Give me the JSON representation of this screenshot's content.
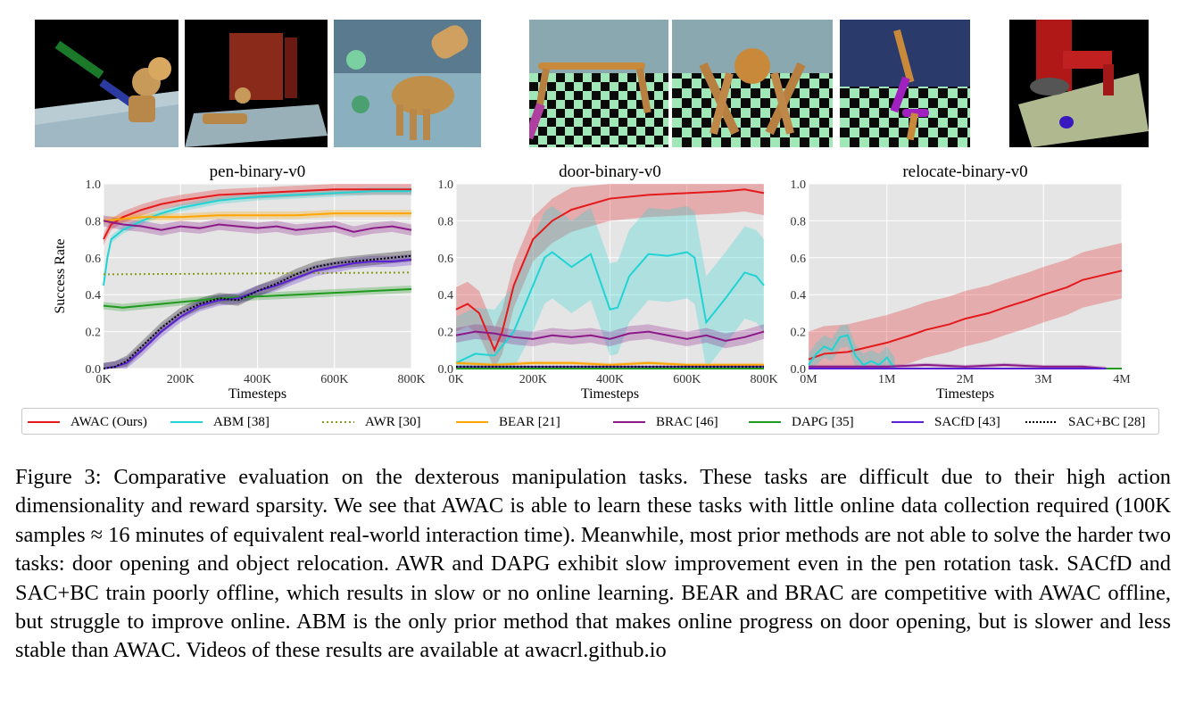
{
  "thumbnails": [
    {
      "name": "pen-scene",
      "alt": "robotic hand rotating a pen"
    },
    {
      "name": "door-scene",
      "alt": "robotic hand opening a door"
    },
    {
      "name": "relocate-scene",
      "alt": "robotic hand relocating a ball"
    },
    {
      "name": "ant-scene-1",
      "alt": "ant robot on checkerboard"
    },
    {
      "name": "ant-scene-2",
      "alt": "ant robot on checkerboard"
    },
    {
      "name": "walker-scene",
      "alt": "walker robot on checkerboard"
    },
    {
      "name": "sawyer-scene",
      "alt": "sawyer arm pushing puck"
    }
  ],
  "colors": {
    "AWAC": "#e41a1c",
    "ABM": "#21d3d3",
    "AWR": "#8a9a1a",
    "BEAR": "#ffa500",
    "BRAC": "#8b1a89",
    "DAPG": "#1f9a1f",
    "SACfD": "#5a1fd6",
    "SACBC": "#000000",
    "plot_bg": "#e5e5e5"
  },
  "chart_data": [
    {
      "type": "line",
      "title": "pen-binary-v0",
      "xlabel": "Timesteps",
      "ylabel": "Success Rate",
      "xlim": [
        0,
        800000
      ],
      "ylim": [
        0,
        1
      ],
      "xticks": [
        "0K",
        "200K",
        "400K",
        "600K",
        "800K"
      ],
      "yticks": [
        "0.0",
        "0.2",
        "0.4",
        "0.6",
        "0.8",
        "1.0"
      ],
      "grid": true,
      "series": [
        {
          "name": "AWAC (Ours)",
          "key": "AWAC",
          "x": [
            0,
            20000,
            50000,
            100000,
            150000,
            200000,
            300000,
            400000,
            500000,
            600000,
            700000,
            800000
          ],
          "y": [
            0.7,
            0.78,
            0.82,
            0.86,
            0.89,
            0.91,
            0.94,
            0.95,
            0.96,
            0.97,
            0.97,
            0.97
          ],
          "band": 0.03
        },
        {
          "name": "ABM [38]",
          "key": "ABM",
          "x": [
            0,
            10000,
            20000,
            50000,
            100000,
            150000,
            200000,
            300000,
            400000,
            500000,
            600000,
            700000,
            800000
          ],
          "y": [
            0.45,
            0.6,
            0.7,
            0.75,
            0.8,
            0.84,
            0.87,
            0.91,
            0.93,
            0.94,
            0.95,
            0.96,
            0.96
          ],
          "band": 0.02
        },
        {
          "name": "AWR [30]",
          "key": "AWR",
          "x": [
            0,
            800000
          ],
          "y": [
            0.51,
            0.52
          ],
          "dash": "2,3",
          "band": 0.0
        },
        {
          "name": "BEAR [21]",
          "key": "BEAR",
          "x": [
            0,
            50000,
            100000,
            200000,
            300000,
            400000,
            500000,
            600000,
            700000,
            800000
          ],
          "y": [
            0.8,
            0.81,
            0.82,
            0.82,
            0.83,
            0.83,
            0.83,
            0.84,
            0.84,
            0.84
          ],
          "band": 0.02
        },
        {
          "name": "BRAC [46]",
          "key": "BRAC",
          "x": [
            0,
            50000,
            100000,
            150000,
            200000,
            250000,
            300000,
            350000,
            400000,
            450000,
            500000,
            550000,
            600000,
            650000,
            700000,
            750000,
            800000
          ],
          "y": [
            0.8,
            0.78,
            0.77,
            0.75,
            0.77,
            0.76,
            0.78,
            0.77,
            0.76,
            0.77,
            0.75,
            0.76,
            0.77,
            0.74,
            0.76,
            0.77,
            0.75
          ],
          "band": 0.03
        },
        {
          "name": "DAPG [35]",
          "key": "DAPG",
          "x": [
            0,
            50000,
            100000,
            200000,
            300000,
            400000,
            500000,
            600000,
            700000,
            800000
          ],
          "y": [
            0.34,
            0.33,
            0.34,
            0.36,
            0.38,
            0.39,
            0.4,
            0.41,
            0.42,
            0.43
          ],
          "band": 0.02
        },
        {
          "name": "SACfD [43]",
          "key": "SACfD",
          "x": [
            0,
            30000,
            60000,
            100000,
            150000,
            200000,
            250000,
            300000,
            350000,
            400000,
            450000,
            500000,
            550000,
            600000,
            650000,
            700000,
            750000,
            800000
          ],
          "y": [
            0.0,
            0.01,
            0.03,
            0.1,
            0.2,
            0.28,
            0.34,
            0.37,
            0.38,
            0.42,
            0.45,
            0.49,
            0.53,
            0.55,
            0.57,
            0.58,
            0.58,
            0.59
          ],
          "band": 0.03
        },
        {
          "name": "SAC+BC [28]",
          "key": "SACBC",
          "x": [
            0,
            30000,
            60000,
            100000,
            150000,
            200000,
            250000,
            300000,
            350000,
            400000,
            450000,
            500000,
            550000,
            600000,
            650000,
            700000,
            750000,
            800000
          ],
          "y": [
            0.0,
            0.01,
            0.04,
            0.12,
            0.22,
            0.3,
            0.35,
            0.38,
            0.37,
            0.42,
            0.46,
            0.51,
            0.55,
            0.57,
            0.58,
            0.59,
            0.6,
            0.61
          ],
          "dash": "2,2",
          "band": 0.03
        }
      ]
    },
    {
      "type": "line",
      "title": "door-binary-v0",
      "xlabel": "Timesteps",
      "ylabel": "",
      "xlim": [
        0,
        800000
      ],
      "ylim": [
        0,
        1
      ],
      "xticks": [
        "0K",
        "200K",
        "400K",
        "600K",
        "800K"
      ],
      "yticks": [
        "0.0",
        "0.2",
        "0.4",
        "0.6",
        "0.8",
        "1.0"
      ],
      "grid": true,
      "series": [
        {
          "name": "AWAC (Ours)",
          "key": "AWAC",
          "x": [
            0,
            30000,
            60000,
            100000,
            120000,
            150000,
            200000,
            250000,
            300000,
            400000,
            500000,
            600000,
            700000,
            750000,
            800000
          ],
          "y": [
            0.32,
            0.35,
            0.3,
            0.1,
            0.2,
            0.45,
            0.7,
            0.8,
            0.86,
            0.92,
            0.94,
            0.95,
            0.96,
            0.97,
            0.95
          ],
          "band": 0.12
        },
        {
          "name": "ABM [38]",
          "key": "ABM",
          "x": [
            0,
            50000,
            100000,
            150000,
            200000,
            230000,
            250000,
            300000,
            350000,
            400000,
            420000,
            450000,
            500000,
            550000,
            600000,
            620000,
            650000,
            700000,
            750000,
            780000,
            800000
          ],
          "y": [
            0.03,
            0.08,
            0.07,
            0.2,
            0.45,
            0.6,
            0.63,
            0.55,
            0.62,
            0.32,
            0.33,
            0.5,
            0.62,
            0.61,
            0.63,
            0.6,
            0.25,
            0.38,
            0.52,
            0.5,
            0.45
          ],
          "band": 0.25
        },
        {
          "name": "BEAR [21]",
          "key": "BEAR",
          "x": [
            0,
            100000,
            200000,
            300000,
            400000,
            500000,
            600000,
            700000,
            800000
          ],
          "y": [
            0.03,
            0.02,
            0.03,
            0.03,
            0.02,
            0.03,
            0.02,
            0.02,
            0.02
          ],
          "band": 0.01
        },
        {
          "name": "BRAC [46]",
          "key": "BRAC",
          "x": [
            0,
            50000,
            100000,
            150000,
            200000,
            250000,
            300000,
            350000,
            400000,
            450000,
            500000,
            550000,
            600000,
            650000,
            700000,
            750000,
            800000
          ],
          "y": [
            0.18,
            0.2,
            0.19,
            0.17,
            0.16,
            0.18,
            0.17,
            0.18,
            0.16,
            0.19,
            0.2,
            0.18,
            0.16,
            0.18,
            0.15,
            0.17,
            0.2
          ],
          "band": 0.04
        },
        {
          "name": "DAPG [35]",
          "key": "DAPG",
          "x": [
            0,
            800000
          ],
          "y": [
            0.0,
            0.0
          ],
          "band": 0.0
        },
        {
          "name": "SACfD [43]",
          "key": "SACfD",
          "x": [
            0,
            800000
          ],
          "y": [
            0.01,
            0.01
          ],
          "band": 0.0
        },
        {
          "name": "SAC+BC [28]",
          "key": "SACBC",
          "x": [
            0,
            800000
          ],
          "y": [
            0.01,
            0.01
          ],
          "dash": "2,2",
          "band": 0.0
        }
      ]
    },
    {
      "type": "line",
      "title": "relocate-binary-v0",
      "xlabel": "Timesteps",
      "ylabel": "",
      "xlim": [
        0,
        4000000
      ],
      "ylim": [
        0,
        1
      ],
      "xticks": [
        "0M",
        "1M",
        "2M",
        "3M",
        "4M"
      ],
      "yticks": [
        "0.0",
        "0.2",
        "0.4",
        "0.6",
        "0.8",
        "1.0"
      ],
      "grid": true,
      "series": [
        {
          "name": "AWAC (Ours)",
          "key": "AWAC",
          "x": [
            0,
            200000,
            500000,
            800000,
            1000000,
            1300000,
            1500000,
            1800000,
            2000000,
            2300000,
            2500000,
            2800000,
            3000000,
            3300000,
            3500000,
            3800000,
            4000000
          ],
          "y": [
            0.05,
            0.08,
            0.09,
            0.12,
            0.14,
            0.18,
            0.21,
            0.24,
            0.27,
            0.3,
            0.33,
            0.37,
            0.4,
            0.44,
            0.48,
            0.51,
            0.53
          ],
          "band": 0.15
        },
        {
          "name": "ABM [38]",
          "key": "ABM",
          "x": [
            0,
            100000,
            200000,
            300000,
            400000,
            500000,
            550000,
            600000,
            700000,
            800000,
            900000,
            1000000,
            1100000
          ],
          "y": [
            0.02,
            0.08,
            0.12,
            0.1,
            0.17,
            0.18,
            0.12,
            0.07,
            0.02,
            0.04,
            0.02,
            0.06,
            0.0
          ],
          "band": 0.06
        },
        {
          "name": "BRAC [46]",
          "key": "BRAC",
          "x": [
            0,
            500000,
            1000000,
            1500000,
            2000000,
            2500000,
            3000000,
            3500000,
            3800000
          ],
          "y": [
            0.01,
            0.01,
            0.01,
            0.02,
            0.01,
            0.02,
            0.01,
            0.01,
            0.0
          ],
          "band": 0.01
        },
        {
          "name": "DAPG [35]",
          "key": "DAPG",
          "x": [
            0,
            4000000
          ],
          "y": [
            0.0,
            0.0
          ],
          "band": 0.0
        },
        {
          "name": "SACfD [43]",
          "key": "SACfD",
          "x": [
            0,
            3800000
          ],
          "y": [
            0.0,
            0.0
          ],
          "band": 0.0
        }
      ]
    }
  ],
  "legend": [
    {
      "label": "AWAC (Ours)",
      "key": "AWAC",
      "dash": ""
    },
    {
      "label": "ABM [38]",
      "key": "ABM",
      "dash": ""
    },
    {
      "label": "AWR [30]",
      "key": "AWR",
      "dash": "2,3"
    },
    {
      "label": "BEAR [21]",
      "key": "BEAR",
      "dash": ""
    },
    {
      "label": "BRAC [46]",
      "key": "BRAC",
      "dash": ""
    },
    {
      "label": "DAPG [35]",
      "key": "DAPG",
      "dash": ""
    },
    {
      "label": "SACfD [43]",
      "key": "SACfD",
      "dash": ""
    },
    {
      "label": "SAC+BC [28]",
      "key": "SACBC",
      "dash": "2,2"
    }
  ],
  "caption": {
    "label": "Figure 3:",
    "text": "Comparative evaluation on the dexterous manipulation tasks. These tasks are difficult due to their high action dimensionality and reward sparsity. We see that AWAC is able to learn these tasks with little online data collection required (100K samples ≈ 16 minutes of equivalent real-world interaction time). Meanwhile, most prior methods are not able to solve the harder two tasks: door opening and object relocation. AWR and DAPG exhibit slow improvement even in the pen rotation task. SACfD and SAC+BC train poorly offline, which results in slow or no online learning. BEAR and BRAC are competitive with AWAC offline, but struggle to improve online. ABM is the only prior method that makes online progress on door opening, but is slower and less stable than AWAC. Videos of these results are available at awacrl.github.io"
  }
}
